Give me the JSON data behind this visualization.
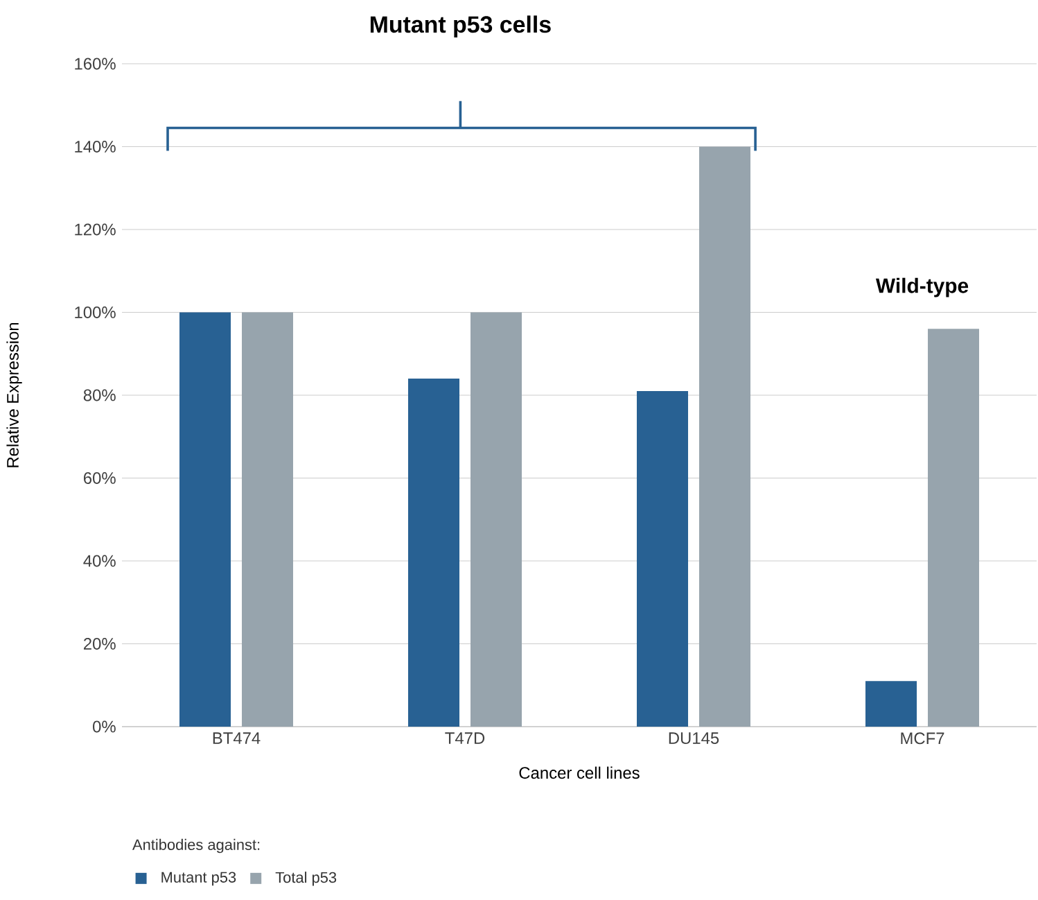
{
  "chart_data": {
    "type": "bar",
    "xlabel": "Cancer cell lines",
    "ylabel": "Relative Expression",
    "legend_title": "Antibodies against:",
    "categories": [
      "BT474",
      "T47D",
      "DU145",
      "MCF7"
    ],
    "series": [
      {
        "name": "Mutant p53",
        "color": "#286193",
        "values": [
          100,
          84,
          81,
          11
        ]
      },
      {
        "name": "Total p53",
        "color": "#97a4ad",
        "values": [
          100,
          100,
          140,
          96
        ]
      }
    ],
    "ylim": [
      0,
      160
    ],
    "yticks": [
      {
        "value": 0,
        "label": "0%"
      },
      {
        "value": 20,
        "label": "20%"
      },
      {
        "value": 40,
        "label": "40%"
      },
      {
        "value": 60,
        "label": "60%"
      },
      {
        "value": 80,
        "label": "80%"
      },
      {
        "value": 100,
        "label": "100%"
      },
      {
        "value": 120,
        "label": "120%"
      },
      {
        "value": 140,
        "label": "140%"
      },
      {
        "value": 160,
        "label": "160%"
      }
    ],
    "grid": "y",
    "legend": "bottom",
    "annotations": [
      "Mutant p53 cells",
      "Wild-type"
    ]
  }
}
